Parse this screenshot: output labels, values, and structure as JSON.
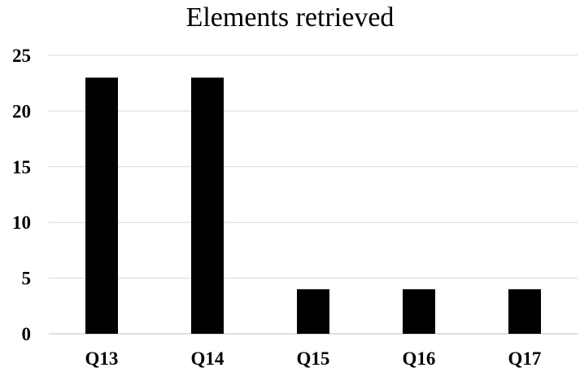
{
  "chart_data": {
    "type": "bar",
    "title": "Elements retrieved",
    "categories": [
      "Q13",
      "Q14",
      "Q15",
      "Q16",
      "Q17"
    ],
    "values": [
      23,
      23,
      4,
      4,
      4
    ],
    "xlabel": "",
    "ylabel": "",
    "ylim": [
      0,
      25
    ],
    "yticks": [
      0,
      5,
      10,
      15,
      20,
      25
    ],
    "grid": true,
    "legend": "none",
    "colors": {
      "bar": "#000000",
      "grid": "#d9d9d9",
      "axis": "#bfbfbf",
      "text": "#000000"
    }
  }
}
